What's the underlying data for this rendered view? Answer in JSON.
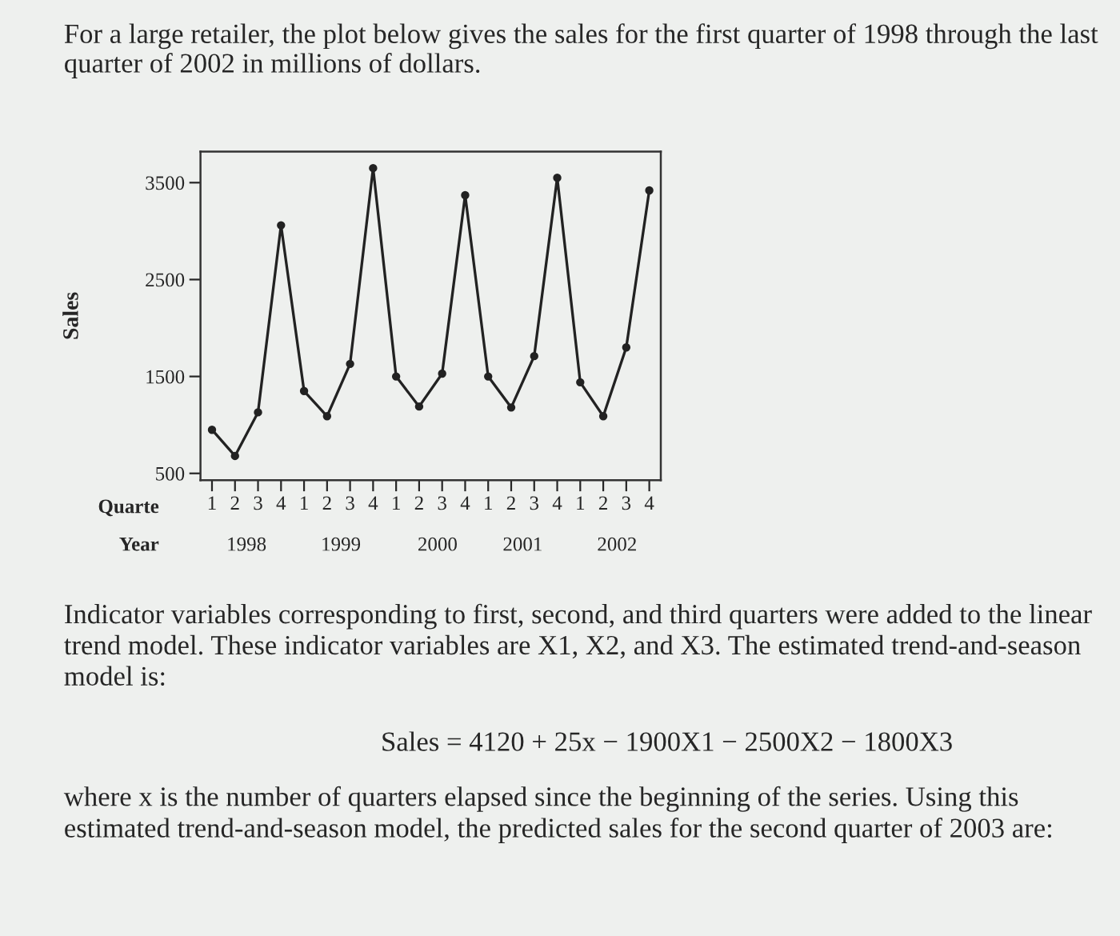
{
  "chart_data": {
    "type": "line",
    "title": "For a large retailer, the plot below gives the sales for the first quarter of 1998 through the last quarter of 2002 in millions of dollars.",
    "ylabel": "Sales",
    "categories": [
      "1",
      "2",
      "3",
      "4",
      "1",
      "2",
      "3",
      "4",
      "1",
      "2",
      "3",
      "4",
      "1",
      "2",
      "3",
      "4",
      "1",
      "2",
      "3",
      "4"
    ],
    "series": [
      {
        "color": "#222222",
        "values": [
          950,
          680,
          1130,
          3060,
          1350,
          1090,
          1630,
          3650,
          1500,
          1190,
          1530,
          3370,
          1500,
          1180,
          1710,
          3550,
          1440,
          1090,
          1800,
          3420
        ]
      }
    ],
    "ylim": [
      430,
      3820
    ],
    "yticks": [
      500,
      1500,
      2500,
      3500
    ],
    "marker": "circle",
    "line_style": "solid",
    "grid": false,
    "legend": false,
    "annotations": [
      "Quarte",
      "Year",
      "1998",
      "1999",
      "2000",
      "2001",
      "2002",
      "Indicator variables corresponding to first, second, and third quarters were added to the linear trend model. These indicator variables are X1, X2, and X3. The estimated trend-and-season model is:",
      "Sales = 4120 + 25x − 1900X1 − 2500X2 − 1800X3",
      "where x is the number of quarters elapsed since the beginning of the series. Using this estimated trend-and-season model, the predicted sales for the second quarter of 2003 are:"
    ]
  }
}
